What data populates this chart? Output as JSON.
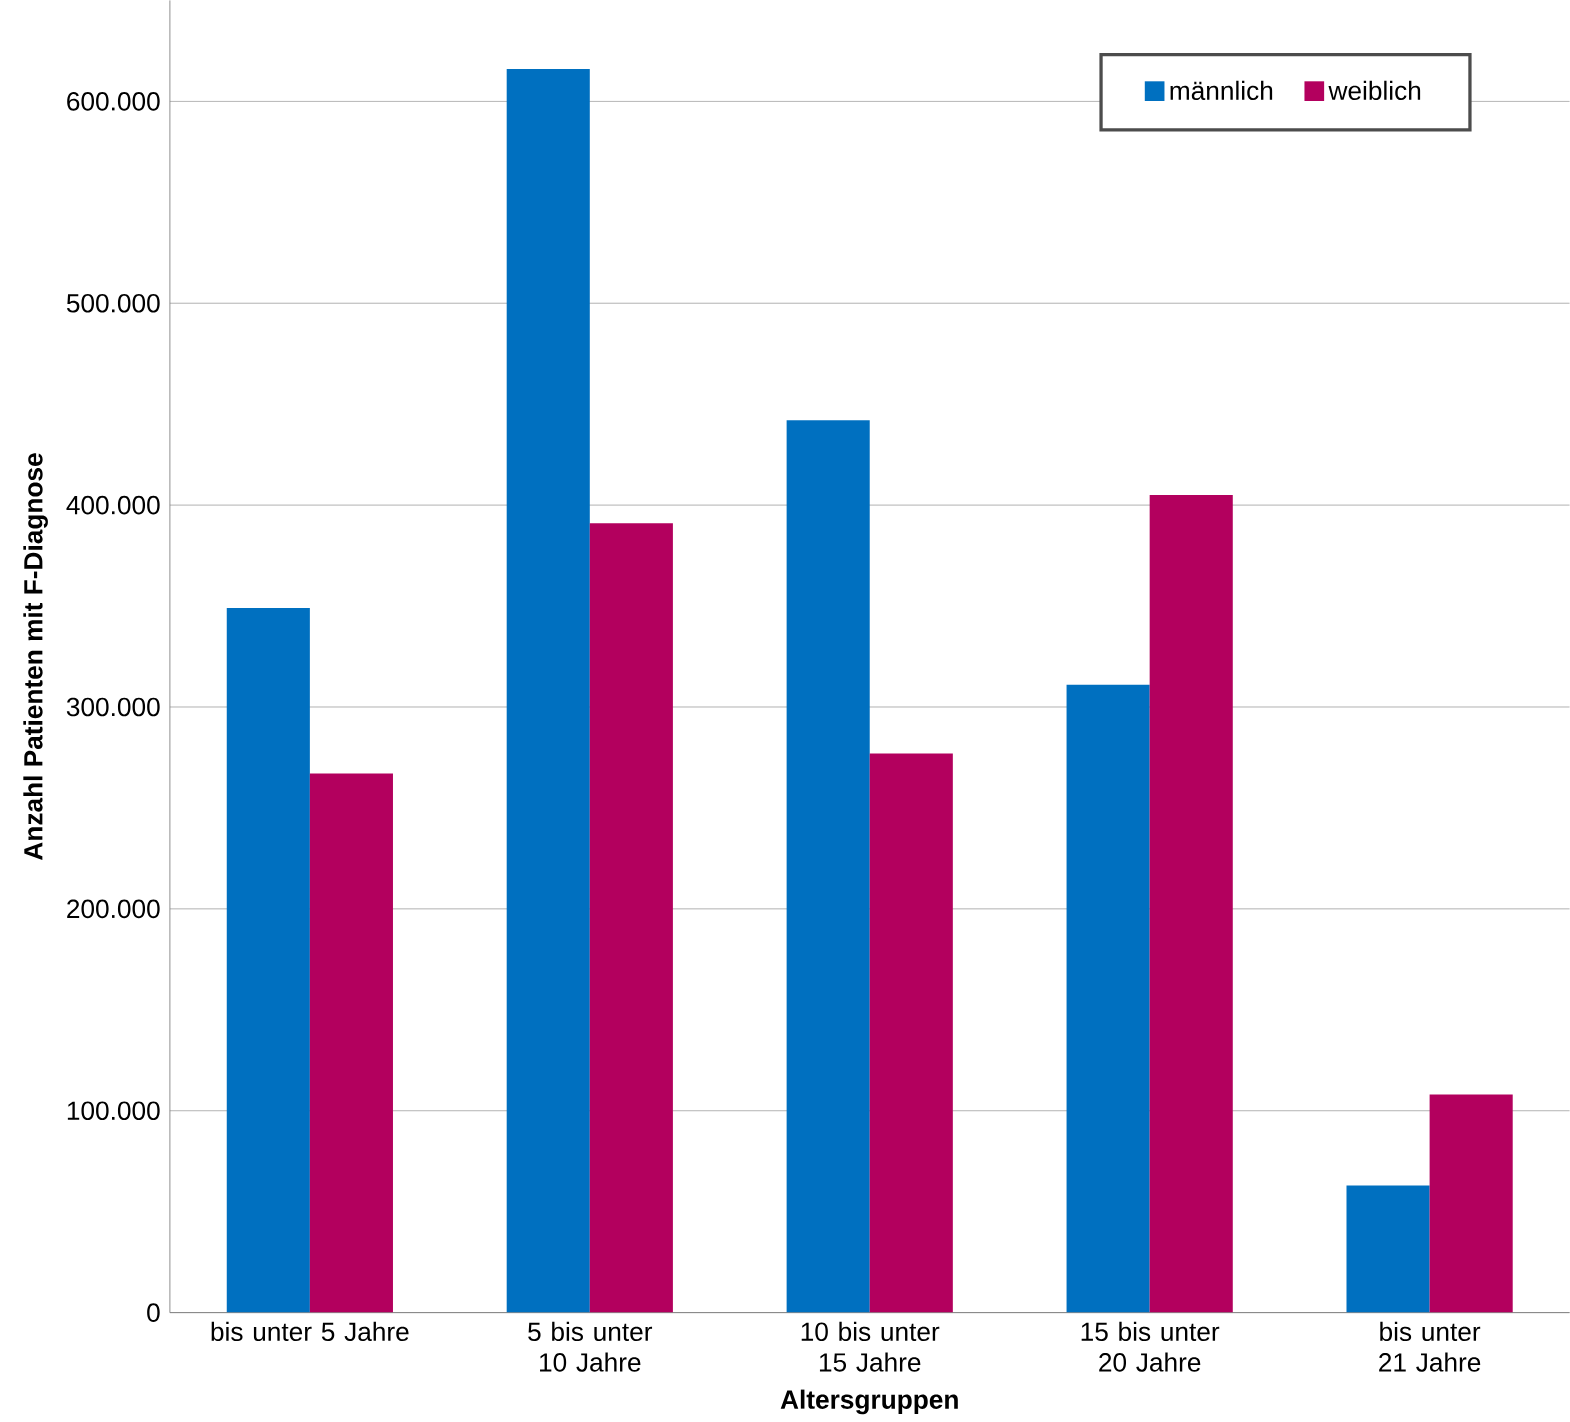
{
  "chart_data": {
    "type": "bar",
    "xlabel": "Altersgruppen",
    "ylabel": "Anzahl Patienten mit F-Diagnose",
    "categories": [
      "bis unter 5 Jahre",
      "5 bis unter 10 Jahre",
      "10 bis unter 15 Jahre",
      "15 bis unter 20 Jahre",
      "bis unter 21 Jahre"
    ],
    "series": [
      {
        "name": "männlich",
        "color": "#0070c0",
        "values": [
          349000,
          616000,
          442000,
          311000,
          63000
        ]
      },
      {
        "name": "weiblich",
        "color": "#b3005e",
        "values": [
          267000,
          391000,
          277000,
          405000,
          108000
        ]
      }
    ],
    "ylim": [
      0,
      650000
    ],
    "yticks": [
      0,
      {
        "value": 100000,
        "label": "100.000"
      },
      {
        "value": 200000,
        "label": "200.000"
      },
      {
        "value": 300000,
        "label": "300.000"
      },
      {
        "value": 400000,
        "label": "400.000"
      },
      {
        "value": 500000,
        "label": "500.000"
      },
      {
        "value": 600000,
        "label": "600.000"
      }
    ],
    "grid": "y",
    "legend": "top right"
  }
}
